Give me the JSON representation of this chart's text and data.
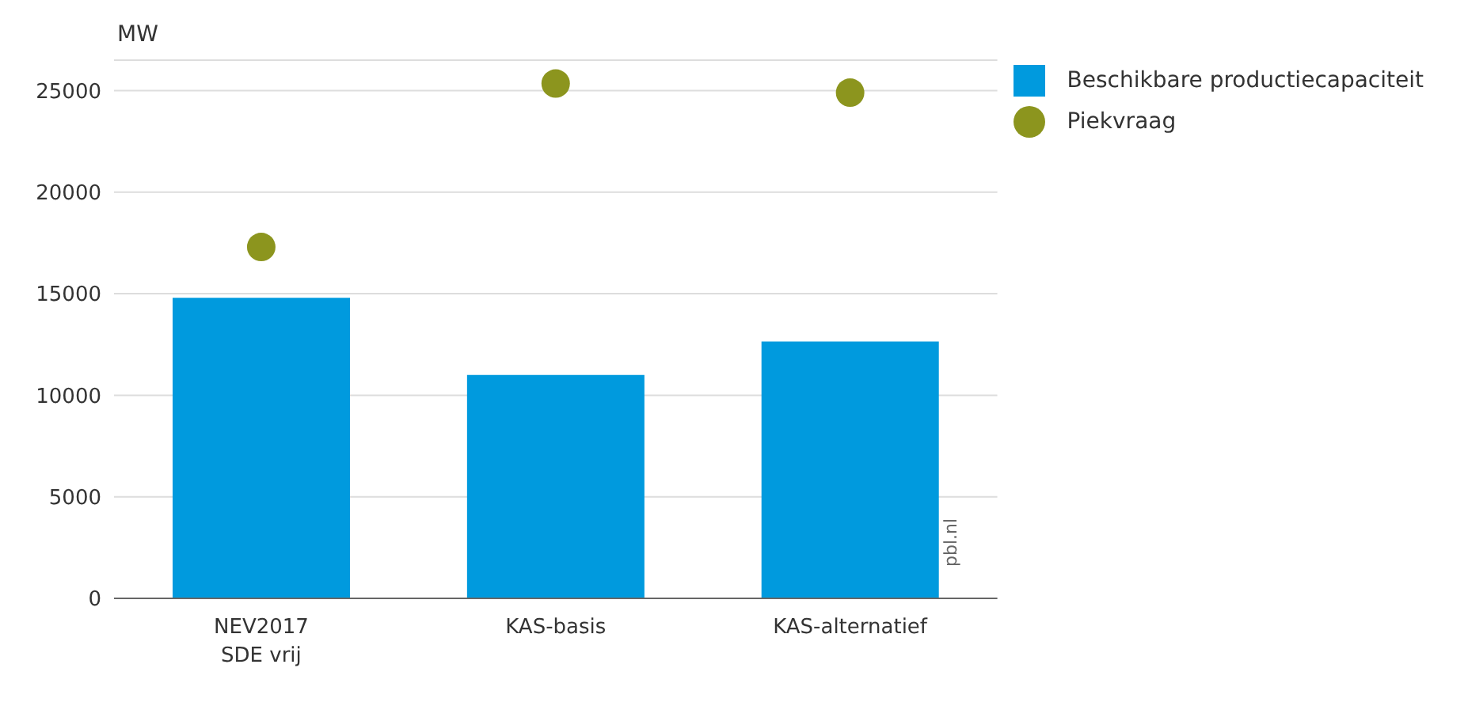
{
  "chart_data": {
    "type": "bar",
    "ylabel": "MW",
    "categories": [
      "NEV2017\nSDE vrij",
      "KAS-basis",
      "KAS-alternatief"
    ],
    "series": [
      {
        "name": "Beschikbare productiecapaciteit",
        "color": "#009ade",
        "values": [
          14800,
          11000,
          12650
        ]
      },
      {
        "name": "Piekvraag",
        "type": "scatter",
        "color": "#8c951e",
        "marker": "circle",
        "values": [
          17300,
          25350,
          24900
        ]
      }
    ],
    "ylim": [
      0,
      26500
    ],
    "yticks": [
      0,
      5000,
      10000,
      15000,
      20000,
      25000
    ],
    "grid": "y",
    "legend": "top right",
    "annotations": [
      "pbl.nl"
    ]
  }
}
